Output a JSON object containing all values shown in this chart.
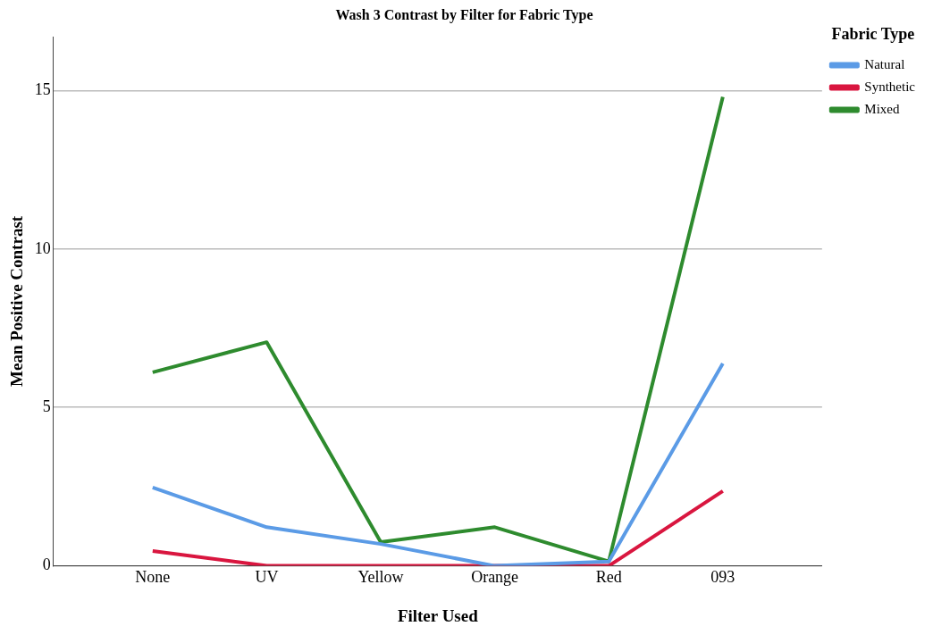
{
  "chart_data": {
    "type": "line",
    "title": "Wash 3 Contrast by Filter for Fabric Type",
    "xlabel": "Filter Used",
    "ylabel": "Mean Positive Contrast",
    "legend_title": "Fabric Type",
    "categories": [
      "None",
      "UV",
      "Yellow",
      "Orange",
      "Red",
      "093"
    ],
    "series": [
      {
        "name": "Natural",
        "color": "#5b9be6",
        "values": [
          2.47,
          1.22,
          0.69,
          0,
          0.14,
          6.39
        ]
      },
      {
        "name": "Synthetic",
        "color": "#d9163f",
        "values": [
          0.47,
          0,
          0,
          0,
          0,
          2.36
        ]
      },
      {
        "name": "Mixed",
        "color": "#2e8b2e",
        "values": [
          6.11,
          7.06,
          0.75,
          1.22,
          0.14,
          14.8
        ]
      }
    ],
    "ylim": [
      0,
      16.7
    ],
    "yticks": [
      0,
      5,
      10,
      15
    ],
    "grid": "y",
    "legend": "top right",
    "marker": "none",
    "line_style": "solid"
  }
}
